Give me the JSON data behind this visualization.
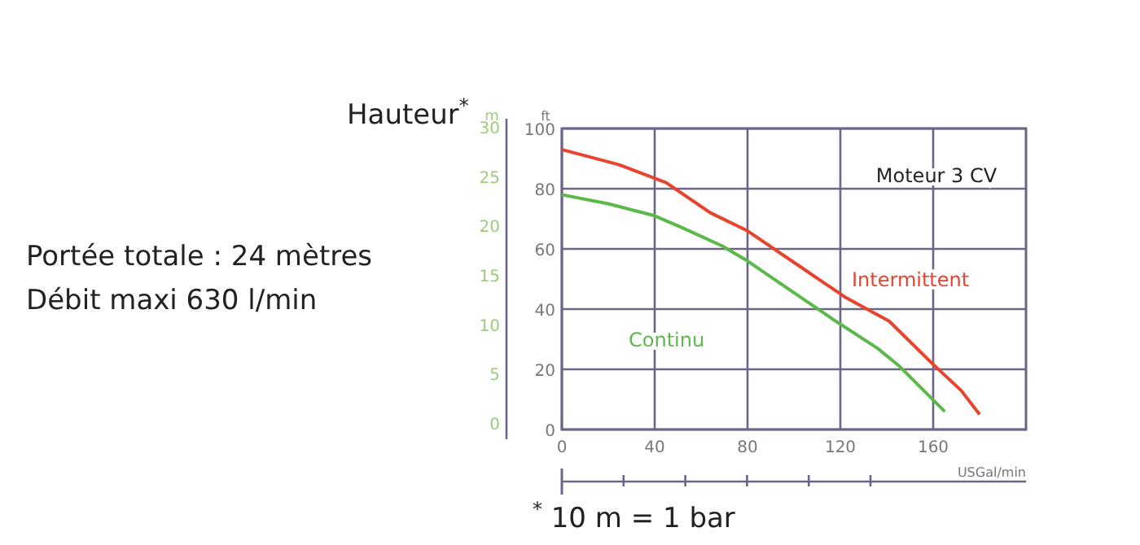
{
  "chart_data": {
    "type": "line",
    "ylabel": "ft",
    "y2label": "m",
    "x2label": "USGal/min",
    "annotations": [
      "Hauteur$^{*}$",
      "Portée totale : 24 mètres",
      "Débit maxi 630 l/min",
      "Moteur 3 CV",
      "$^{*}$ 10 m = 1 bar"
    ],
    "xlim": [
      0,
      200
    ],
    "xticks": [
      0,
      40,
      80,
      120,
      160
    ],
    "ylim": [
      0,
      100
    ],
    "yticks": [
      0,
      20,
      40,
      60,
      80,
      100
    ],
    "y2lim": [
      0,
      30
    ],
    "y2ticks": [
      0,
      5,
      10,
      15,
      20,
      25,
      30
    ],
    "grid": true,
    "marker": "none",
    "line_style": "solid",
    "series": [
      {
        "name": "Intermittent",
        "color": "#e8432f",
        "x": [
          0,
          24.5,
          45,
          64,
          80,
          101,
          122,
          141,
          159.5,
          172,
          180
        ],
        "values": [
          93,
          88,
          82,
          72,
          66,
          55,
          44,
          36,
          22,
          13,
          5
        ]
      },
      {
        "name": "Continu",
        "color": "#5cb84a",
        "x": [
          0,
          20,
          40,
          52,
          69,
          80,
          99,
          118,
          136,
          145.5,
          165
        ],
        "values": [
          78,
          75,
          71,
          67,
          61,
          56,
          46,
          36,
          27,
          21,
          6
        ]
      }
    ]
  }
}
